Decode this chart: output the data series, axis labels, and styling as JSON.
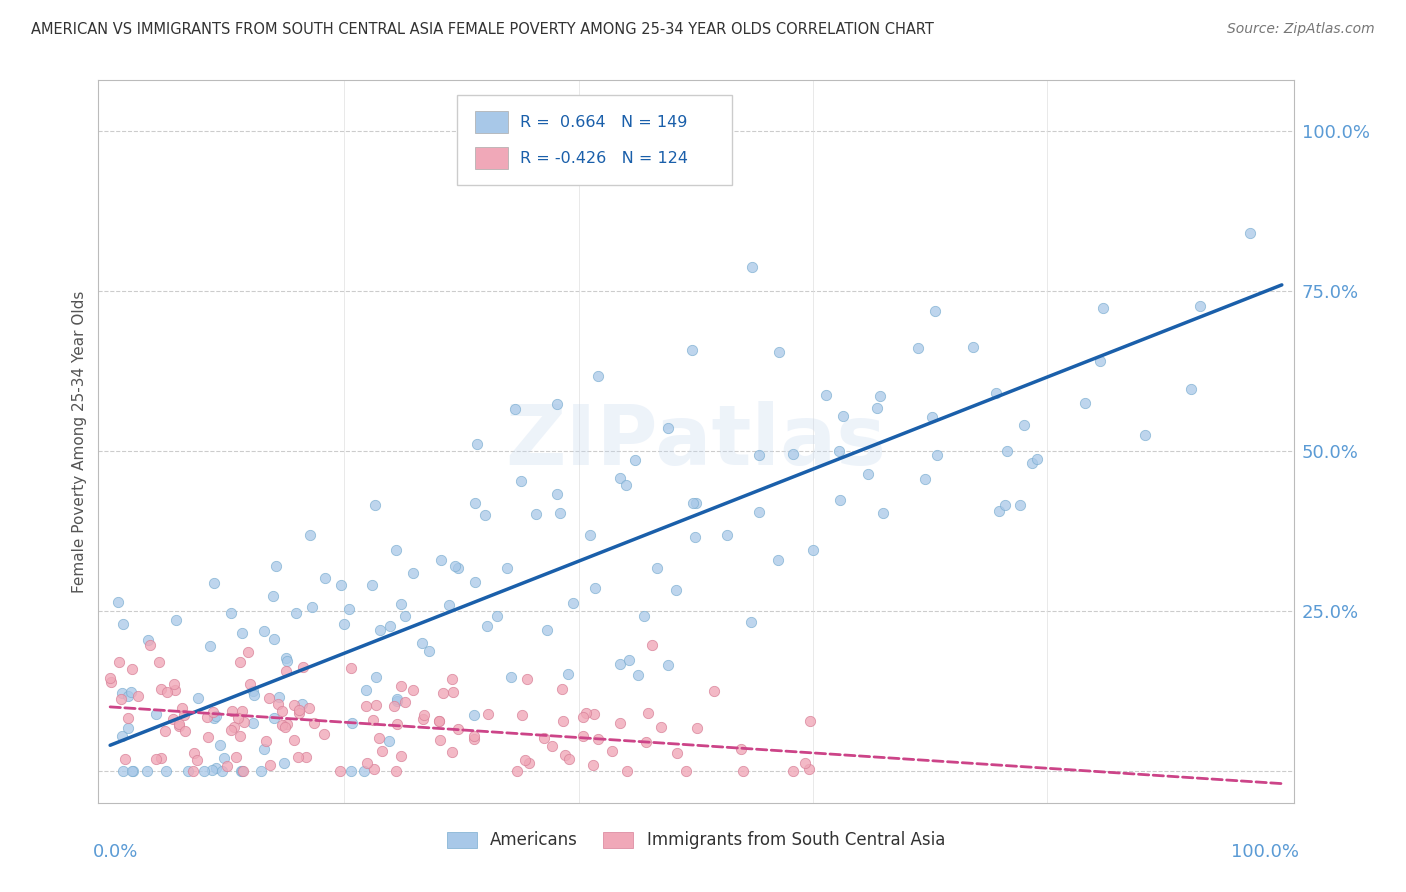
{
  "title": "AMERICAN VS IMMIGRANTS FROM SOUTH CENTRAL ASIA FEMALE POVERTY AMONG 25-34 YEAR OLDS CORRELATION CHART",
  "source": "Source: ZipAtlas.com",
  "ylabel": "Female Poverty Among 25-34 Year Olds",
  "watermark": "ZIPatlas",
  "legend_r1": "R =  0.664",
  "legend_n1": "N = 149",
  "legend_r2": "R = -0.426",
  "legend_n2": "N = 124",
  "blue_color": "#A8C8E8",
  "blue_edge_color": "#7AADD0",
  "pink_color": "#F0A8B8",
  "pink_edge_color": "#D88098",
  "blue_line_color": "#1A5FAA",
  "pink_line_color": "#CC4488",
  "title_color": "#333333",
  "axis_label_color": "#5B9BD5",
  "background_color": "#FFFFFF",
  "grid_color": "#CCCCCC",
  "blue_r": 0.664,
  "blue_n": 149,
  "pink_r": -0.426,
  "pink_n": 124,
  "ytick_vals": [
    0.0,
    0.25,
    0.5,
    0.75,
    1.0
  ],
  "ytick_labels": [
    "",
    "25.0%",
    "50.0%",
    "75.0%",
    "100.0%"
  ],
  "blue_line_intercept": 0.04,
  "blue_line_slope": 0.72,
  "pink_line_intercept": 0.1,
  "pink_line_slope": -0.12
}
